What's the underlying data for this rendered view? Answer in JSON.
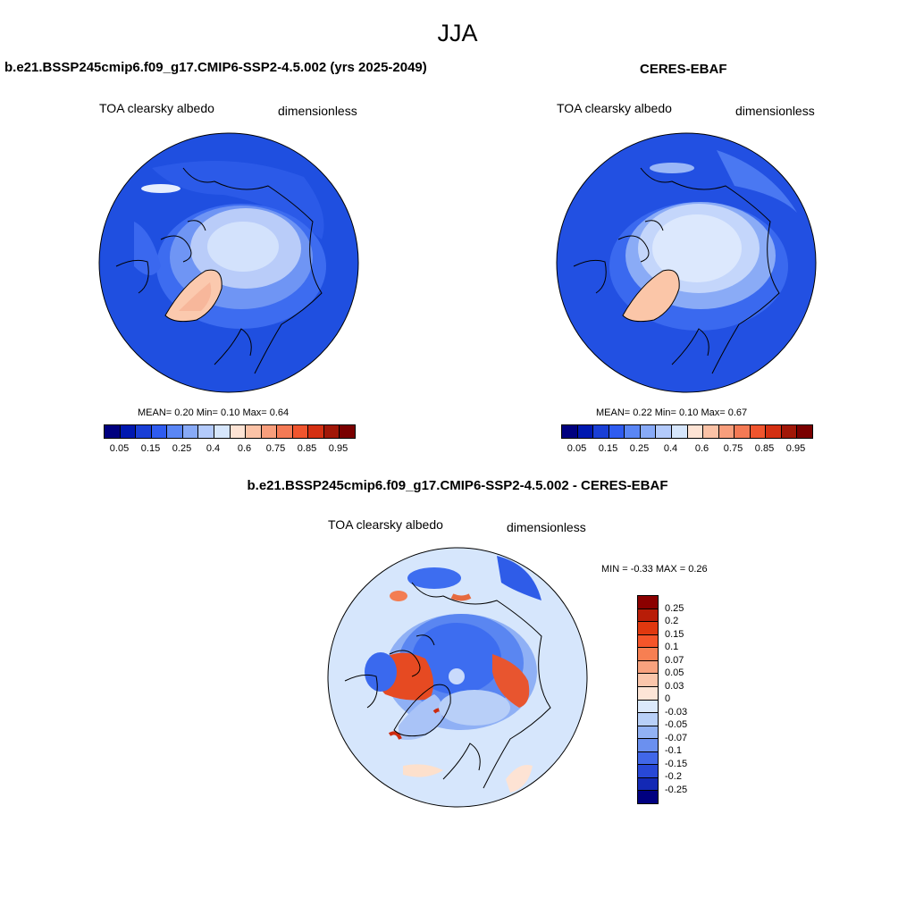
{
  "title": "JJA",
  "panels": {
    "model": {
      "title": "b.e21.BSSP245cmip6.f09_g17.CMIP6-SSP2-4.5.002 (yrs 2025-2049)",
      "variable": "TOA clearsky albedo",
      "units": "dimensionless",
      "stats": {
        "mean_label": "MEAN=",
        "mean": "0.20",
        "min_label": "Min=",
        "min": "0.10",
        "max_label": "Max=",
        "max": "0.64"
      }
    },
    "obs": {
      "title": "CERES-EBAF",
      "variable": "TOA clearsky albedo",
      "units": "dimensionless",
      "stats": {
        "mean_label": "MEAN=",
        "mean": "0.22",
        "min_label": "Min=",
        "min": "0.10",
        "max_label": "Max=",
        "max": "0.67"
      }
    },
    "diff": {
      "title": "b.e21.BSSP245cmip6.f09_g17.CMIP6-SSP2-4.5.002 - CERES-EBAF",
      "variable": "TOA clearsky albedo",
      "units": "dimensionless",
      "stats": {
        "min_label": "MIN =",
        "min": "-0.33",
        "max_label": "MAX =",
        "max": "0.26"
      }
    }
  },
  "colorbar_main": {
    "colors": [
      "#00007f",
      "#0018b0",
      "#1a3fd6",
      "#2f5cf0",
      "#5a86f5",
      "#88aaf7",
      "#b3cafb",
      "#d6e6fc",
      "#fde3d4",
      "#fbc2a6",
      "#f89e7c",
      "#f47a55",
      "#f0552e",
      "#d43012",
      "#a11707",
      "#7a0000"
    ],
    "tick_labels": [
      "0.05",
      "0.15",
      "0.25",
      "0.4",
      "0.6",
      "0.75",
      "0.85",
      "0.95"
    ]
  },
  "colorbar_diff": {
    "colors": [
      "#8b0000",
      "#b81d08",
      "#e0380f",
      "#f5552a",
      "#f77f52",
      "#f8a27e",
      "#fbc6ab",
      "#fde5d6",
      "#dbe9fb",
      "#b8d0f8",
      "#92b2f4",
      "#6b90ef",
      "#4167e8",
      "#2848d6",
      "#1329b5",
      "#000080"
    ],
    "tick_labels": [
      "0.25",
      "0.2",
      "0.15",
      "0.1",
      "0.07",
      "0.05",
      "0.03",
      "0",
      "-0.03",
      "-0.05",
      "-0.07",
      "-0.1",
      "-0.15",
      "-0.2",
      "-0.25"
    ]
  }
}
